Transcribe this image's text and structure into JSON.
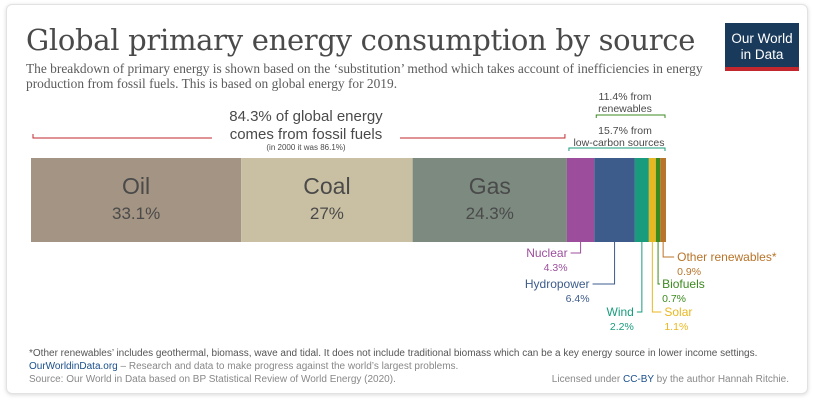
{
  "header": {
    "title": "Global primary energy consumption by source",
    "subtitle": "The breakdown of primary energy is shown based on the ‘substitution’ method which takes account of inefficiencies in energy production from fossil fuels. This is based on global energy for 2019."
  },
  "logo": {
    "line1": "Our World",
    "line2": "in Data"
  },
  "chart_data": {
    "type": "bar",
    "orientation": "horizontal-stacked",
    "title": "Global primary energy consumption by source",
    "categories": [
      "Oil",
      "Coal",
      "Gas",
      "Nuclear",
      "Hydropower",
      "Wind",
      "Solar",
      "Biofuels",
      "Other renewables*"
    ],
    "values": [
      33.1,
      27,
      24.3,
      4.3,
      6.4,
      2.2,
      1.1,
      0.7,
      0.9
    ],
    "value_labels": [
      "33.1%",
      "27%",
      "24.3%",
      "4.3%",
      "6.4%",
      "2.2%",
      "1.1%",
      "0.7%",
      "0.9%"
    ],
    "colors": [
      "#a39483",
      "#c9c0a3",
      "#7c8a80",
      "#9c4e9c",
      "#3d5c8c",
      "#199c7e",
      "#e9b720",
      "#3c8a1f",
      "#b8742a"
    ],
    "label_colors": [
      "#4a4a4a",
      "#4a4a4a",
      "#4a4a4a",
      "#9c4e9c",
      "#3d5c8c",
      "#199c7e",
      "#e9b720",
      "#3c8a1f",
      "#b8742a"
    ],
    "brackets": {
      "fossil": {
        "line1": "84.3% of global energy",
        "line2": "comes from fossil fuels",
        "note": "(in 2000 it was 86.1%)",
        "color": "#c2272d"
      },
      "renewables": {
        "line1": "11.4% from",
        "line2": "renewables",
        "color": "#3c8a1f"
      },
      "low_carbon": {
        "line1": "15.7% from",
        "line2": "low-carbon sources",
        "color": "#199c7e"
      }
    }
  },
  "footer": {
    "footnote": "*Other renewables’ includes geothermal, biomass, wave and tidal. It does not include traditional biomass which can be a key energy source in lower income settings.",
    "site": "OurWorldinData.org",
    "tagline": " – Research and data to make progress against the world’s largest problems.",
    "source": "Source: Our World in Data based on BP Statistical Review of World Energy (2020).",
    "license_prefix": "Licensed under ",
    "license": "CC-BY",
    "license_suffix": " by the author Hannah Ritchie."
  }
}
